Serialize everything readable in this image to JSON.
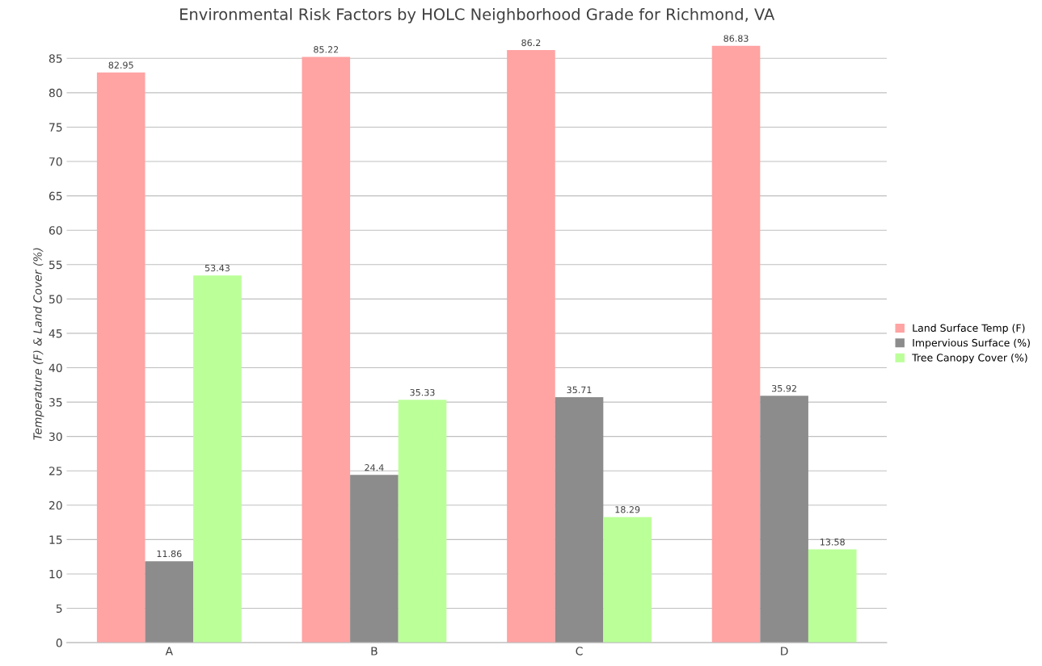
{
  "chart_data": {
    "type": "bar",
    "title": "Environmental Risk Factors by HOLC Neighborhood Grade for Richmond, VA",
    "ylabel": "Temperature (F) & Land Cover (%)",
    "categories": [
      "A",
      "B",
      "C",
      "D"
    ],
    "series": [
      {
        "name": "Land Surface Temp (F)",
        "color": "#ffa3a3",
        "values": [
          82.95,
          85.22,
          86.2,
          86.83
        ]
      },
      {
        "name": "Impervious Surface (%)",
        "color": "#8c8c8c",
        "values": [
          11.86,
          24.4,
          35.71,
          35.92
        ]
      },
      {
        "name": "Tree Canopy Cover (%)",
        "color": "#bbff99",
        "values": [
          53.43,
          35.33,
          18.29,
          13.58
        ]
      }
    ],
    "ylim": [
      0,
      87
    ],
    "yticks": [
      0,
      5,
      10,
      15,
      20,
      25,
      30,
      35,
      40,
      45,
      50,
      55,
      60,
      65,
      70,
      75,
      80,
      85
    ],
    "grid": "y",
    "legend": "right",
    "data_labels": true
  }
}
